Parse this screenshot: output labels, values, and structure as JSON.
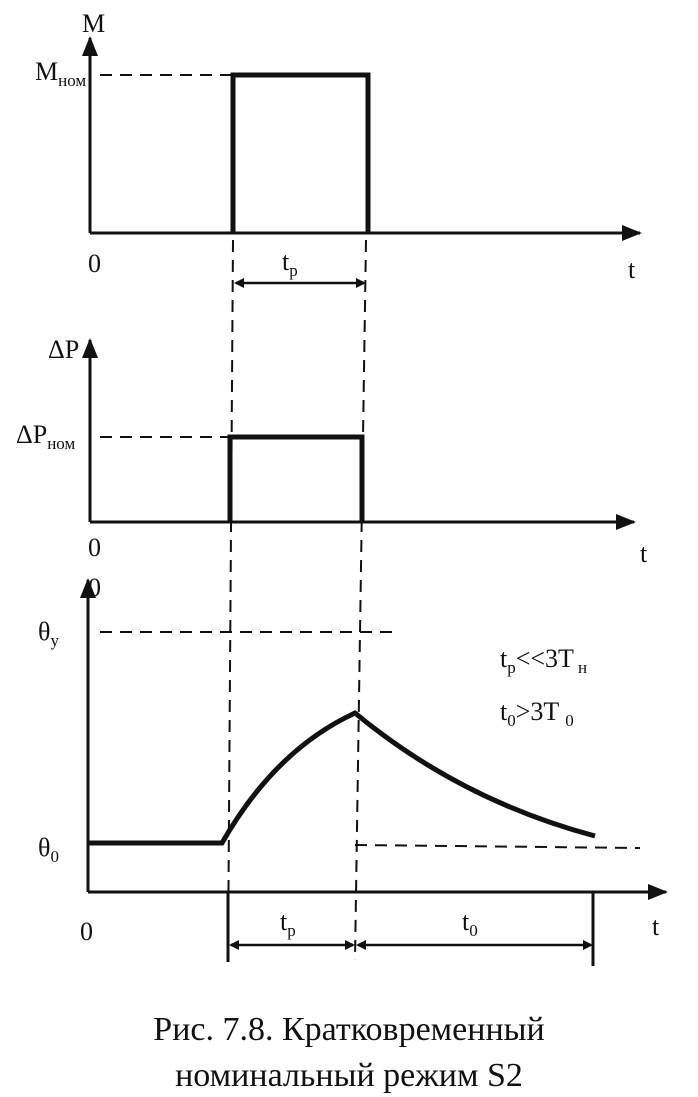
{
  "panels": [
    {
      "y_axis": "M",
      "level": {
        "main": "M",
        "sub": "ном"
      },
      "origin": "0",
      "x_axis": "t",
      "interval": {
        "main": "t",
        "sub": "р"
      }
    },
    {
      "y_axis": "ΔP",
      "level": {
        "main": "ΔP",
        "sub": "ном"
      },
      "origin": "0",
      "x_axis": "t"
    },
    {
      "y_axis": "0",
      "level": {
        "main": "θ",
        "sub": "у"
      },
      "base": {
        "main": "θ",
        "sub": "0"
      },
      "origin": "0",
      "x_axis": "t",
      "intervals": [
        {
          "main": "t",
          "sub": "р"
        },
        {
          "main": "t",
          "sub": "0"
        }
      ],
      "notes": [
        [
          "t",
          "р",
          "<<3T",
          "н"
        ],
        [
          "t",
          "0",
          ">3T",
          "0"
        ]
      ]
    }
  ],
  "caption": [
    "Рис. 7.8. Кратковременный",
    "номинальный режим S2"
  ]
}
